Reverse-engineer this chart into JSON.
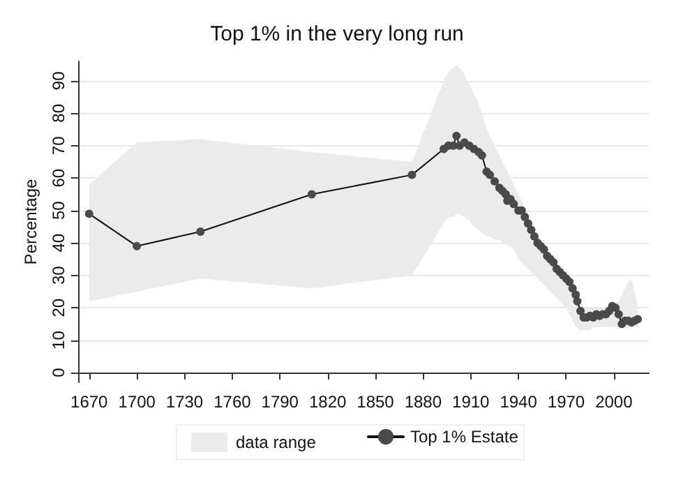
{
  "chart_data": {
    "type": "line",
    "title": "Top 1% in the very long run",
    "ylabel": "Percentage",
    "xlim": [
      1663,
      2022
    ],
    "xticks": [
      1670,
      1700,
      1730,
      1760,
      1790,
      1820,
      1850,
      1880,
      1910,
      1940,
      1970,
      2000
    ],
    "ylim": [
      -3,
      96
    ],
    "yticks": [
      0,
      10,
      20,
      30,
      40,
      50,
      60,
      70,
      80,
      90
    ],
    "grid": "y",
    "legend": "bottom",
    "marker": "circle",
    "line_style": "solid",
    "annotations": [
      "data range"
    ],
    "series": [
      {
        "name": "Top 1% Estate",
        "color": "#4a4a4a",
        "x": [
          1670,
          1700,
          1740,
          1810,
          1873,
          1893,
          1896,
          1899,
          1901,
          1903,
          1906,
          1909,
          1912,
          1915,
          1917,
          1920,
          1922,
          1925,
          1928,
          1930,
          1932,
          1933,
          1935,
          1937,
          1940,
          1942,
          1944,
          1946,
          1948,
          1950,
          1952,
          1954,
          1956,
          1958,
          1960,
          1962,
          1964,
          1966,
          1968,
          1970,
          1972,
          1974,
          1976,
          1977,
          1979,
          1981,
          1983,
          1985,
          1987,
          1989,
          1991,
          1993,
          1995,
          1997,
          1999,
          2001,
          2003,
          2005,
          2007,
          2009,
          2011,
          2013,
          2015
        ],
        "values": [
          49,
          39,
          43.5,
          55,
          61,
          69,
          70,
          70,
          73,
          70,
          71,
          70,
          69,
          68,
          67,
          62,
          61,
          59,
          57,
          56,
          55,
          53,
          53.5,
          52,
          50,
          50,
          48,
          46,
          44,
          42,
          40,
          39,
          38,
          36,
          35,
          34,
          32,
          31,
          30,
          29,
          28,
          26,
          24,
          22,
          19,
          17,
          17,
          17.5,
          17,
          18,
          17.5,
          18,
          18,
          19,
          20.5,
          20,
          18,
          15,
          16,
          16,
          15.5,
          16,
          16.5
        ],
        "upper": [
          58,
          71,
          72,
          68,
          65,
          90,
          93,
          94,
          95,
          94,
          92,
          89,
          86,
          83,
          80,
          75,
          73,
          70,
          67,
          65,
          63,
          62,
          60,
          58,
          55,
          53,
          51,
          49,
          47,
          45,
          43,
          41,
          39,
          37,
          35,
          33,
          31,
          30,
          29,
          28,
          26,
          24,
          22,
          21,
          20,
          20,
          20,
          20,
          20,
          20,
          20,
          20,
          20,
          20,
          21,
          21,
          22,
          24,
          26,
          28,
          29,
          25,
          20
        ],
        "lower": [
          22,
          25,
          29,
          26,
          30,
          46,
          48,
          48,
          49,
          49,
          48,
          47,
          45,
          44,
          43,
          42,
          42,
          41,
          41,
          40,
          40,
          39,
          39,
          38,
          35,
          34,
          33,
          32,
          31,
          30,
          29,
          28,
          27,
          26,
          25,
          24,
          23,
          22,
          21,
          20,
          18,
          16,
          14,
          14,
          13,
          13,
          13,
          13,
          14,
          14,
          14,
          14,
          14,
          14,
          14,
          14,
          14,
          14,
          14,
          14,
          14,
          14,
          14
        ]
      }
    ]
  }
}
